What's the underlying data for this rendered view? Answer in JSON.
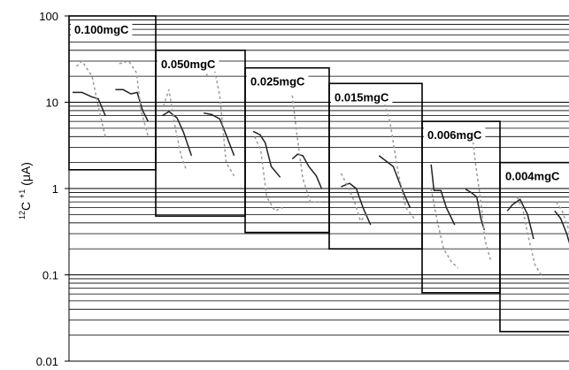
{
  "chart_data": {
    "type": "line",
    "title": "",
    "xlabel": "",
    "ylabel": "C (μA)",
    "ylabel_superscript_pre": "12",
    "ylabel_superscript_post": "+1",
    "yscale": "log",
    "ylim": [
      0.01,
      100
    ],
    "yticks": [
      "100",
      "10",
      "1",
      "0.1",
      "0.01"
    ],
    "grid": true,
    "legend": "none",
    "series_styles": {
      "solid": {
        "color": "#222222",
        "dash": "none"
      },
      "dotted": {
        "color": "#999999",
        "dash": "3,3"
      }
    },
    "boxes": [
      {
        "label": "0.100mgC",
        "ymin": 1.65,
        "ymax": 100,
        "traces": [
          {
            "style": "solid",
            "points": [
              [
                0.0,
                13
              ],
              [
                0.12,
                13
              ],
              [
                0.25,
                11.5
              ],
              [
                0.33,
                11
              ],
              [
                0.42,
                7
              ]
            ]
          },
          {
            "style": "dotted",
            "points": [
              [
                0.05,
                26
              ],
              [
                0.12,
                30
              ],
              [
                0.25,
                20
              ],
              [
                0.33,
                9
              ],
              [
                0.42,
                4
              ]
            ]
          },
          {
            "style": "solid",
            "points": [
              [
                0.55,
                14
              ],
              [
                0.65,
                14
              ],
              [
                0.75,
                12.5
              ],
              [
                0.83,
                13
              ],
              [
                0.9,
                8
              ],
              [
                0.97,
                6
              ]
            ]
          },
          {
            "style": "dotted",
            "points": [
              [
                0.6,
                28
              ],
              [
                0.72,
                30
              ],
              [
                0.82,
                22
              ],
              [
                0.88,
                8
              ],
              [
                0.97,
                4
              ]
            ]
          }
        ]
      },
      {
        "label": "0.050mgC",
        "ymin": 0.48,
        "ymax": 40,
        "traces": [
          {
            "style": "solid",
            "points": [
              [
                0.04,
                7.0
              ],
              [
                0.12,
                7.8
              ],
              [
                0.22,
                6.6
              ],
              [
                0.3,
                4.5
              ],
              [
                0.4,
                2.4
              ]
            ]
          },
          {
            "style": "dotted",
            "points": [
              [
                0.05,
                9
              ],
              [
                0.12,
                14
              ],
              [
                0.2,
                5
              ],
              [
                0.27,
                2.4
              ],
              [
                0.34,
                1.6
              ]
            ]
          },
          {
            "style": "solid",
            "points": [
              [
                0.55,
                7.5
              ],
              [
                0.65,
                7.2
              ],
              [
                0.75,
                6.4
              ],
              [
                0.83,
                4.2
              ],
              [
                0.93,
                2.4
              ]
            ]
          },
          {
            "style": "dotted",
            "points": [
              [
                0.58,
                20
              ],
              [
                0.67,
                28
              ],
              [
                0.75,
                12
              ],
              [
                0.83,
                2
              ],
              [
                0.93,
                1.4
              ]
            ]
          }
        ]
      },
      {
        "label": "0.025mgC",
        "ymin": 0.31,
        "ymax": 25,
        "traces": [
          {
            "style": "solid",
            "points": [
              [
                0.06,
                4.6
              ],
              [
                0.15,
                4.2
              ],
              [
                0.22,
                3.4
              ],
              [
                0.3,
                1.8
              ],
              [
                0.42,
                1.35
              ]
            ]
          },
          {
            "style": "dotted",
            "points": [
              [
                0.08,
                4
              ],
              [
                0.16,
                2.8
              ],
              [
                0.24,
                0.8
              ],
              [
                0.35,
                0.55
              ],
              [
                0.45,
                0.6
              ]
            ]
          },
          {
            "style": "solid",
            "points": [
              [
                0.58,
                2.2
              ],
              [
                0.65,
                2.5
              ],
              [
                0.72,
                2.4
              ],
              [
                0.8,
                1.8
              ],
              [
                0.9,
                1.4
              ],
              [
                0.97,
                1.0
              ]
            ]
          },
          {
            "style": "dotted",
            "points": [
              [
                0.58,
                12
              ],
              [
                0.63,
                5
              ],
              [
                0.72,
                1.3
              ],
              [
                0.82,
                0.7
              ],
              [
                0.95,
                0.7
              ]
            ]
          }
        ]
      },
      {
        "label": "0.015mgC",
        "ymin": 0.2,
        "ymax": 16.5,
        "traces": [
          {
            "style": "solid",
            "points": [
              [
                0.1,
                1.05
              ],
              [
                0.2,
                1.15
              ],
              [
                0.28,
                1.0
              ],
              [
                0.36,
                0.6
              ],
              [
                0.45,
                0.38
              ]
            ]
          },
          {
            "style": "dotted",
            "points": [
              [
                0.1,
                1.5
              ],
              [
                0.17,
                1.1
              ],
              [
                0.26,
                0.7
              ],
              [
                0.33,
                0.42
              ],
              [
                0.4,
                0.5
              ]
            ]
          },
          {
            "style": "solid",
            "points": [
              [
                0.55,
                2.4
              ],
              [
                0.63,
                2.1
              ],
              [
                0.72,
                1.8
              ],
              [
                0.82,
                1.0
              ],
              [
                0.92,
                0.6
              ]
            ]
          },
          {
            "style": "dotted",
            "points": [
              [
                0.6,
                11
              ],
              [
                0.68,
                6
              ],
              [
                0.78,
                1.5
              ],
              [
                0.87,
                0.6
              ],
              [
                0.97,
                0.45
              ]
            ]
          }
        ]
      },
      {
        "label": "0.006mgC",
        "ymin": 0.062,
        "ymax": 6,
        "traces": [
          {
            "style": "solid",
            "points": [
              [
                0.08,
                1.9
              ],
              [
                0.12,
                0.95
              ],
              [
                0.22,
                0.95
              ],
              [
                0.3,
                0.6
              ],
              [
                0.42,
                0.38
              ]
            ]
          },
          {
            "style": "dotted",
            "points": [
              [
                0.08,
                1.0
              ],
              [
                0.16,
                0.45
              ],
              [
                0.26,
                0.2
              ],
              [
                0.38,
                0.14
              ],
              [
                0.47,
                0.12
              ]
            ]
          },
          {
            "style": "solid",
            "points": [
              [
                0.58,
                0.98
              ],
              [
                0.66,
                0.9
              ],
              [
                0.74,
                0.8
              ],
              [
                0.8,
                0.45
              ],
              [
                0.85,
                0.33
              ]
            ]
          },
          {
            "style": "dotted",
            "points": [
              [
                0.68,
                4
              ],
              [
                0.72,
                2
              ],
              [
                0.8,
                0.7
              ],
              [
                0.86,
                0.25
              ],
              [
                0.94,
                0.15
              ]
            ]
          }
        ]
      },
      {
        "label": "0.004mgC",
        "ymin": 0.022,
        "ymax": 2.0,
        "traces": [
          {
            "style": "solid",
            "points": [
              [
                0.05,
                0.55
              ],
              [
                0.12,
                0.65
              ],
              [
                0.22,
                0.75
              ],
              [
                0.32,
                0.5
              ],
              [
                0.4,
                0.26
              ]
            ]
          },
          {
            "style": "dotted",
            "points": [
              [
                0.18,
                0.8
              ],
              [
                0.26,
                0.55
              ],
              [
                0.34,
                0.25
              ],
              [
                0.42,
                0.13
              ],
              [
                0.5,
                0.1
              ]
            ]
          },
          {
            "style": "solid",
            "points": [
              [
                0.68,
                0.55
              ],
              [
                0.76,
                0.45
              ],
              [
                0.84,
                0.3
              ],
              [
                0.9,
                0.2
              ],
              [
                0.96,
                0.12
              ]
            ]
          },
          {
            "style": "dotted",
            "points": [
              [
                0.7,
                0.7
              ],
              [
                0.78,
                0.55
              ],
              [
                0.86,
                0.35
              ],
              [
                0.94,
                0.2
              ],
              [
                1.0,
                0.15
              ]
            ]
          }
        ]
      }
    ]
  }
}
